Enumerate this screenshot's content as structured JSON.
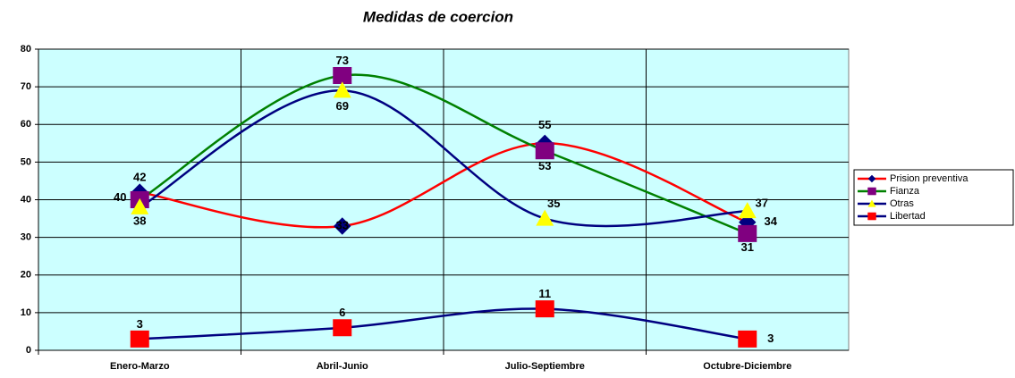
{
  "chart_data": {
    "type": "line",
    "title": "Medidas de coercion",
    "categories": [
      "Enero-Marzo",
      "Abril-Junio",
      "Julio-Septiembre",
      "Octubre-Diciembre"
    ],
    "series": [
      {
        "name": "Prision preventiva",
        "color": "#ff0000",
        "marker": "diamond",
        "marker_color": "#000080",
        "values": [
          42,
          33,
          55,
          34
        ]
      },
      {
        "name": "Fianza",
        "color": "#008000",
        "marker": "square",
        "marker_color": "#800080",
        "values": [
          40,
          73,
          53,
          31
        ]
      },
      {
        "name": "Otras",
        "color": "#000080",
        "marker": "triangle",
        "marker_color": "#ffff00",
        "values": [
          38,
          69,
          35,
          37
        ]
      },
      {
        "name": "Libertad",
        "color": "#000080",
        "marker": "square",
        "marker_color": "#ff0000",
        "values": [
          3,
          6,
          11,
          3
        ]
      }
    ],
    "ylim": [
      0,
      80
    ],
    "yticks": [
      0,
      10,
      20,
      30,
      40,
      50,
      60,
      70,
      80
    ],
    "grid": true,
    "legend": "right",
    "smooth": true
  }
}
